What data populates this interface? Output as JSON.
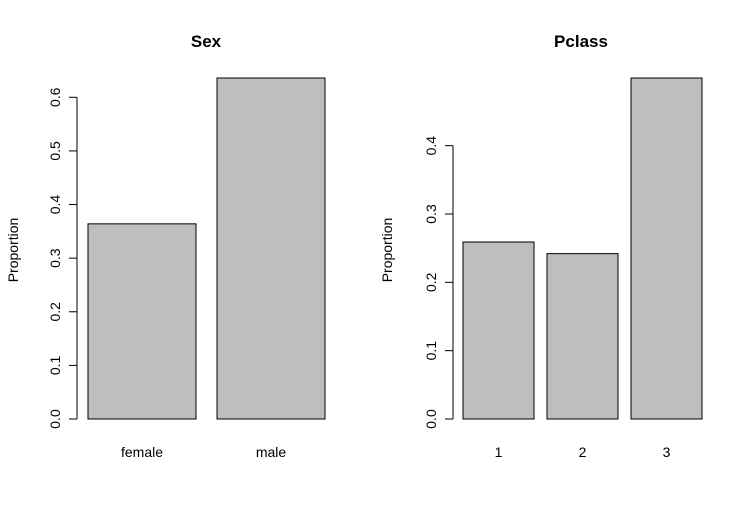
{
  "chart_data": [
    {
      "type": "bar",
      "title": "Sex",
      "ylabel": "Proportion",
      "xlabel": "",
      "categories": [
        "female",
        "male"
      ],
      "values": [
        0.364,
        0.636
      ],
      "ylim": [
        0,
        0.636
      ],
      "yticks": [
        "0.0",
        "0.1",
        "0.2",
        "0.3",
        "0.4",
        "0.5",
        "0.6"
      ],
      "bar_color": "#bebebe",
      "grid": false
    },
    {
      "type": "bar",
      "title": "Pclass",
      "ylabel": "Proportion",
      "xlabel": "",
      "categories": [
        "1",
        "2",
        "3"
      ],
      "values": [
        0.259,
        0.242,
        0.499
      ],
      "ylim": [
        0,
        0.499
      ],
      "yticks": [
        "0.0",
        "0.1",
        "0.2",
        "0.3",
        "0.4"
      ],
      "bar_color": "#bebebe",
      "grid": false
    }
  ]
}
